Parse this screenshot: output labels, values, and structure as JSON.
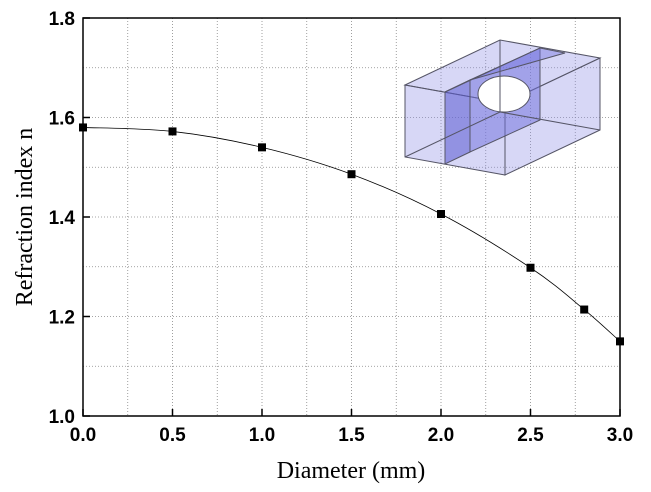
{
  "chart_data": {
    "type": "line",
    "x_label": "Diameter (mm)",
    "y_label": "Refraction index n",
    "x": [
      0,
      0.5,
      1.0,
      1.5,
      2.0,
      2.5,
      2.8,
      3.0
    ],
    "series": [
      {
        "color": "#000000",
        "values": [
          1.58,
          1.572,
          1.54,
          1.486,
          1.406,
          1.298,
          1.214,
          1.15
        ]
      }
    ],
    "xlim": [
      0,
      3.0
    ],
    "ylim": [
      1.0,
      1.8
    ],
    "xticks": [
      {
        "value": 0,
        "label": "0.0"
      },
      {
        "value": 0.5,
        "label": "0.5"
      },
      {
        "value": 1.0,
        "label": "1.0"
      },
      {
        "value": 1.5,
        "label": "1.5"
      },
      {
        "value": 2.0,
        "label": "2.0"
      },
      {
        "value": 2.5,
        "label": "2.5"
      },
      {
        "value": 3.0,
        "label": "3.0"
      }
    ],
    "yticks": [
      {
        "value": 1.0,
        "label": "1.0"
      },
      {
        "value": 1.2,
        "label": "1.2"
      },
      {
        "value": 1.4,
        "label": "1.4"
      },
      {
        "value": 1.6,
        "label": "1.6"
      },
      {
        "value": 1.8,
        "label": "1.8"
      }
    ],
    "x_minor_ticks": [
      0.25,
      0.75,
      1.25,
      1.75,
      2.25,
      2.75
    ],
    "y_minor_ticks": [
      1.1,
      1.3,
      1.5,
      1.7
    ],
    "grid": true
  }
}
